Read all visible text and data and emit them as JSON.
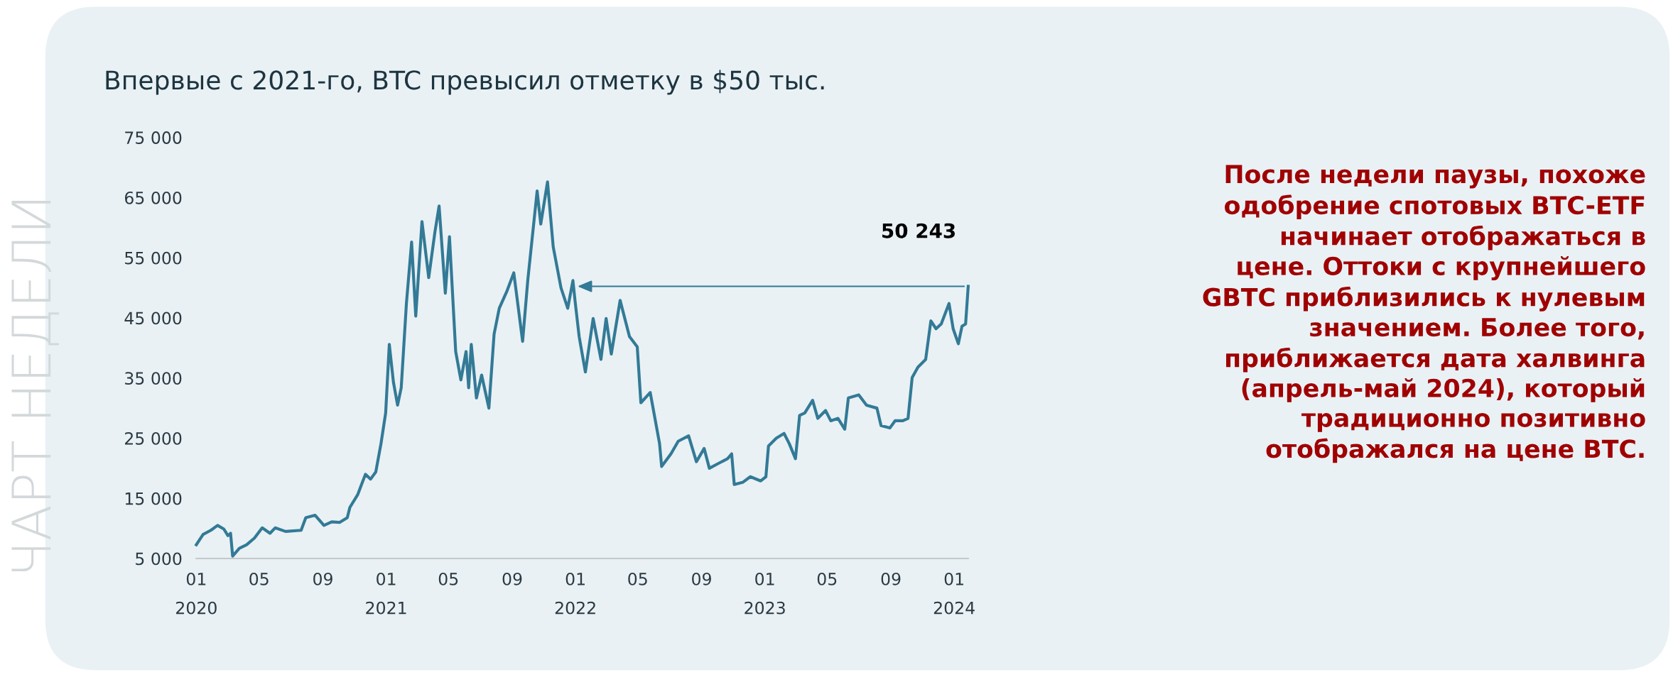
{
  "chart_data": {
    "type": "line",
    "title": "Впервые с 2021-го, BTC превысил отметку в $50 тыс.",
    "x": [
      "2020-01-01",
      "2020-01-14",
      "2020-01-29",
      "2020-02-11",
      "2020-02-23",
      "2020-03-02",
      "2020-03-07",
      "2020-03-11",
      "2020-03-24",
      "2020-04-07",
      "2020-04-22",
      "2020-05-07",
      "2020-05-22",
      "2020-06-01",
      "2020-06-21",
      "2020-07-21",
      "2020-07-30",
      "2020-08-17",
      "2020-09-03",
      "2020-09-18",
      "2020-10-03",
      "2020-10-18",
      "2020-10-23",
      "2020-11-07",
      "2020-11-22",
      "2020-12-02",
      "2020-12-12",
      "2020-12-22",
      "2020-12-31",
      "2021-01-07",
      "2021-01-15",
      "2021-01-23",
      "2021-01-30",
      "2021-02-09",
      "2021-02-19",
      "2021-02-27",
      "2021-03-11",
      "2021-03-24",
      "2021-04-05",
      "2021-04-13",
      "2021-04-25",
      "2021-05-03",
      "2021-05-15",
      "2021-05-25",
      "2021-06-04",
      "2021-06-09",
      "2021-06-14",
      "2021-06-24",
      "2021-07-04",
      "2021-07-18",
      "2021-07-28",
      "2021-08-07",
      "2021-08-22",
      "2021-09-04",
      "2021-09-21",
      "2021-10-01",
      "2021-10-19",
      "2021-10-26",
      "2021-11-08",
      "2021-11-19",
      "2021-12-04",
      "2021-12-17",
      "2021-12-27",
      "2021-12-31",
      "2022-01-08",
      "2022-01-20",
      "2022-02-04",
      "2022-02-19",
      "2022-03-01",
      "2022-03-11",
      "2022-03-28",
      "2022-04-15",
      "2022-04-30",
      "2022-05-07",
      "2022-05-25",
      "2022-06-12",
      "2022-06-16",
      "2022-07-04",
      "2022-07-18",
      "2022-08-07",
      "2022-08-22",
      "2022-09-06",
      "2022-09-16",
      "2022-10-01",
      "2022-10-21",
      "2022-10-29",
      "2022-11-03",
      "2022-11-20",
      "2022-12-04",
      "2022-12-24",
      "2023-01-03",
      "2023-01-08",
      "2023-01-23",
      "2023-02-07",
      "2023-02-17",
      "2023-03-01",
      "2023-03-09",
      "2023-03-19",
      "2023-04-03",
      "2023-04-13",
      "2023-04-28",
      "2023-05-08",
      "2023-05-22",
      "2023-06-04",
      "2023-06-11",
      "2023-07-01",
      "2023-07-16",
      "2023-08-05",
      "2023-08-13",
      "2023-08-30",
      "2023-09-09",
      "2023-09-24",
      "2023-10-04",
      "2023-10-12",
      "2023-10-23",
      "2023-11-07",
      "2023-11-17",
      "2023-11-27",
      "2023-12-07",
      "2023-12-22",
      "2023-12-30",
      "2024-01-09",
      "2024-01-16",
      "2024-01-23",
      "2024-01-28"
    ],
    "series": [
      {
        "color": "#337a96",
        "values": [
          7300,
          9000,
          9700,
          10500,
          9900,
          8800,
          9200,
          5400,
          6700,
          7300,
          8400,
          10100,
          9200,
          10100,
          9500,
          9700,
          11800,
          12200,
          10500,
          11100,
          11000,
          11800,
          13500,
          15600,
          19000,
          18200,
          19400,
          24100,
          29200,
          40600,
          34300,
          30500,
          33400,
          47400,
          57600,
          45300,
          61000,
          51700,
          59300,
          63600,
          49100,
          58500,
          39400,
          34700,
          39400,
          33400,
          40600,
          31700,
          35500,
          30000,
          42300,
          46600,
          49500,
          52500,
          41100,
          51300,
          66100,
          60600,
          67600,
          56800,
          50000,
          46600,
          51200,
          47900,
          41900,
          36000,
          44900,
          38100,
          44900,
          39000,
          47900,
          41900,
          40200,
          30900,
          32600,
          24100,
          20300,
          22400,
          24500,
          25400,
          21100,
          23300,
          20000,
          20700,
          21600,
          22400,
          17300,
          17700,
          18600,
          17900,
          18600,
          23700,
          25000,
          25800,
          24100,
          21600,
          28800,
          29200,
          31300,
          28300,
          29600,
          27900,
          28300,
          26500,
          31700,
          32200,
          30500,
          30000,
          27100,
          26700,
          27900,
          27900,
          28300,
          35100,
          36800,
          38100,
          44500,
          43200,
          44000,
          47400,
          43200,
          40700,
          43600,
          44000,
          50243
        ]
      }
    ],
    "xlim": [
      "2020-01-01",
      "2024-01-28"
    ],
    "xticks": [
      {
        "value": "2020-01",
        "label": "01\n2020"
      },
      {
        "value": "2020-05",
        "label": "05"
      },
      {
        "value": "2020-09",
        "label": "09"
      },
      {
        "value": "2021-01",
        "label": "01\n2021"
      },
      {
        "value": "2021-05",
        "label": "05"
      },
      {
        "value": "2021-09",
        "label": "09"
      },
      {
        "value": "2022-01",
        "label": "01\n2022"
      },
      {
        "value": "2022-05",
        "label": "05"
      },
      {
        "value": "2022-09",
        "label": "09"
      },
      {
        "value": "2023-01",
        "label": "01\n2023"
      },
      {
        "value": "2023-05",
        "label": "05"
      },
      {
        "value": "2023-09",
        "label": "09"
      },
      {
        "value": "2024-01",
        "label": "01\n2024"
      }
    ],
    "ylim": [
      5000,
      75000
    ],
    "yticks": [
      {
        "value": 5000,
        "label": "5 000"
      },
      {
        "value": 15000,
        "label": "15 000"
      },
      {
        "value": 25000,
        "label": "25 000"
      },
      {
        "value": 35000,
        "label": "35 000"
      },
      {
        "value": 45000,
        "label": "45 000"
      },
      {
        "value": 55000,
        "label": "55 000"
      },
      {
        "value": 65000,
        "label": "65 000"
      },
      {
        "value": 75000,
        "label": "75 000"
      }
    ],
    "grid": false,
    "legend": false,
    "annotations": [
      {
        "text": "50 243",
        "x": "2024-01-28",
        "y": 50243
      },
      "После недели паузы, похоже\nодобрение спотовых BTC-ETF\nначинает отображаться в\nцене. Оттоки с крупнейшего\nGBTC приблизились к нулевым\nзначением. Более того,\nприближается дата халвинга\n(апрель-май 2024), который\nтрадиционно позитивно\nотображался на цене BTC.",
      "ЧАРТ НЕДЕЛИ"
    ]
  }
}
